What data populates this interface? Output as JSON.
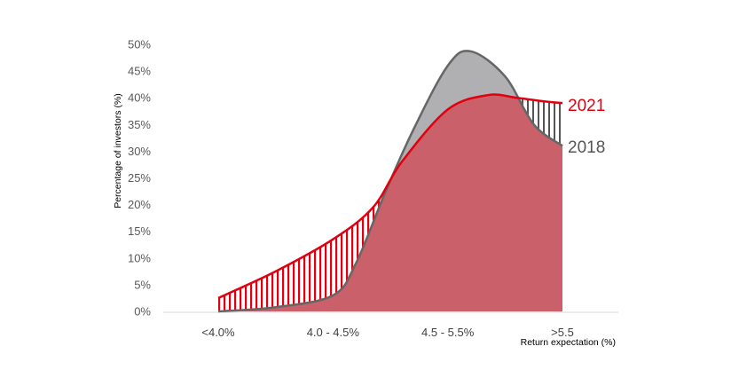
{
  "chart_data": {
    "type": "area",
    "categories": [
      "<4.0%",
      "4.0 - 4.5%",
      "4.5 - 5.5%",
      ">5.5"
    ],
    "ylabel": "Percentage of investors (%)",
    "xlabel": "Return expectation (%)",
    "ylim": [
      0,
      50
    ],
    "yticks": [
      "0%",
      "5%",
      "10%",
      "15%",
      "20%",
      "25%",
      "30%",
      "35%",
      "40%",
      "45%",
      "50%"
    ],
    "legend": "right",
    "grid": false,
    "series": [
      {
        "name": "2021",
        "color": "#e0000f",
        "fill": "#c9606a",
        "x": [
          0.0,
          0.5,
          1.0,
          1.35,
          1.6,
          2.0,
          2.35,
          2.6,
          2.85,
          3.0
        ],
        "y": [
          2.5,
          7.5,
          13.5,
          19.5,
          28.0,
          37.8,
          40.5,
          40.0,
          39.3,
          39.0
        ]
      },
      {
        "name": "2018",
        "color": "#666666",
        "fill": "#b0b0b3",
        "x": [
          0.0,
          0.5,
          1.0,
          1.2,
          1.45,
          1.7,
          2.0,
          2.2,
          2.5,
          2.75,
          3.0
        ],
        "y": [
          0.0,
          0.8,
          3.0,
          9.0,
          22.0,
          34.0,
          46.0,
          48.7,
          44.0,
          35.0,
          31.0
        ]
      }
    ]
  }
}
